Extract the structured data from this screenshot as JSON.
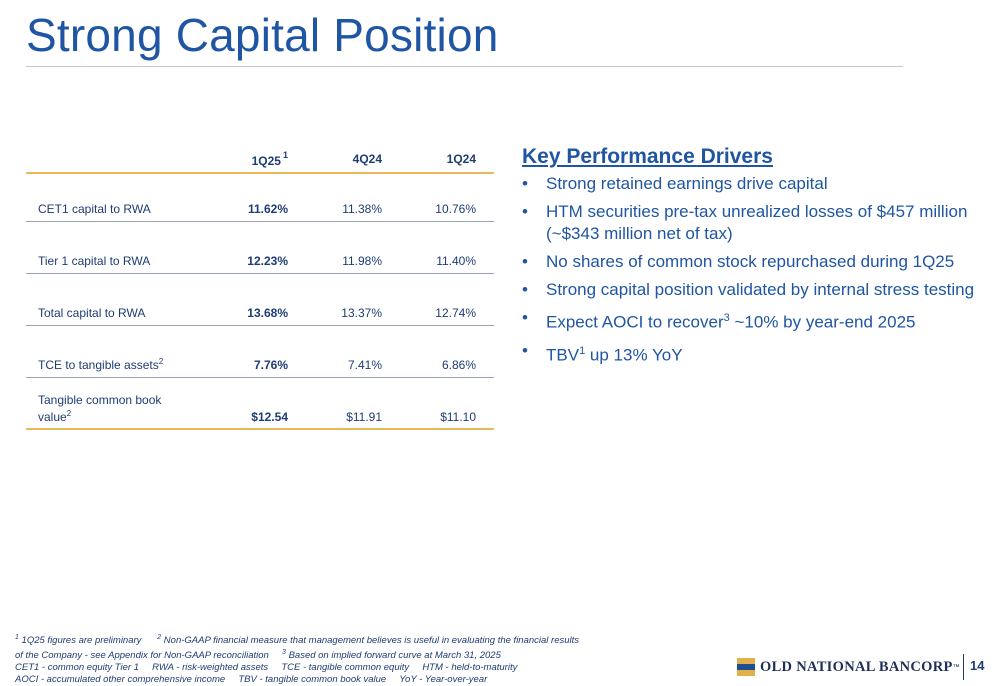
{
  "title": "Strong Capital Position",
  "table": {
    "columns": [
      "1Q25",
      "4Q24",
      "1Q24"
    ],
    "col1_sup": "1",
    "rows": [
      {
        "label": "CET1 capital to RWA",
        "label_sup": "",
        "values": [
          "11.62%",
          "11.38%",
          "10.76%"
        ]
      },
      {
        "label": "Tier 1 capital to RWA",
        "label_sup": "",
        "values": [
          "12.23%",
          "11.98%",
          "11.40%"
        ]
      },
      {
        "label": "Total capital to RWA",
        "label_sup": "",
        "values": [
          "13.68%",
          "13.37%",
          "12.74%"
        ]
      },
      {
        "label": "TCE to tangible assets",
        "label_sup": "2",
        "values": [
          "7.76%",
          "7.41%",
          "6.86%"
        ]
      },
      {
        "label_line1": "Tangible common book",
        "label_line2": "value",
        "label_sup": "2",
        "values": [
          "$12.54",
          "$11.91",
          "$11.10"
        ]
      }
    ]
  },
  "drivers": {
    "heading": "Key Performance Drivers",
    "bullet_char": "•",
    "items": [
      {
        "text": "Strong retained earnings drive capital"
      },
      {
        "text": "HTM securities pre-tax unrealized losses of $457 million (~$343 million net of tax)"
      },
      {
        "text": "No shares of common stock repurchased during 1Q25"
      },
      {
        "text": "Strong capital position validated by internal stress testing"
      },
      {
        "pre": "Expect AOCI to recover",
        "sup": "3",
        "post": " ~10% by year-end 2025"
      },
      {
        "pre": "TBV",
        "sup": "1",
        "post": " up 13% YoY"
      }
    ]
  },
  "footnotes": {
    "fn1_sup": "1",
    "fn1": " 1Q25 figures are preliminary",
    "fn2_sup": "2",
    "fn2": " Non-GAAP financial measure that management believes is useful in evaluating the financial results",
    "fn2_cont": "of the Company - see Appendix for Non-GAAP reconciliation",
    "fn3_sup": "3",
    "fn3": " Based on implied forward curve at March 31, 2025",
    "abbrev1": "CET1 - common equity Tier 1     RWA - risk-weighted assets     TCE - tangible common equity     HTM - held-to-maturity",
    "abbrev2": "AOCI - accumulated other comprehensive income     TBV - tangible common book value     YoY - Year-over-year"
  },
  "logo": {
    "text": "OLD NATIONAL BANCORP",
    "mark": "™"
  },
  "page_number": "14",
  "colors": {
    "title": "#1f55a3",
    "text": "#1f3c73",
    "gold": "#e7b85d",
    "logo_navy": "#1f2f57"
  }
}
